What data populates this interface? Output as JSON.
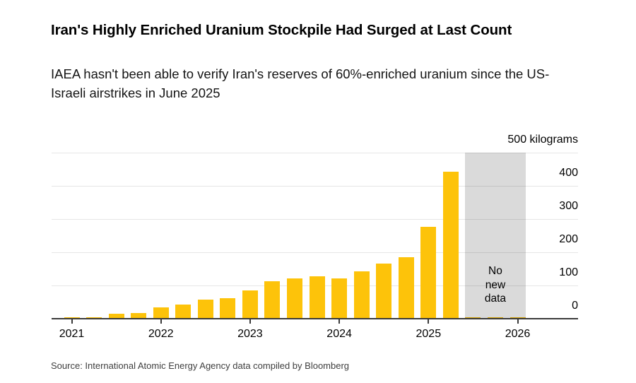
{
  "page": {
    "title": "Iran's Highly Enriched Uranium Stockpile Had Surged at Last Count",
    "subtitle": "IAEA hasn't been able to verify Iran's reserves of 60%-enriched uranium since the US-Israeli airstrikes in June 2025",
    "source": "Source: International Atomic Energy Agency data compiled by Bloomberg"
  },
  "colors": {
    "bar": "#fdc30a",
    "no_data_band": "rgba(0,0,0,0.145)",
    "gridline": "#e6e6e6",
    "axis": "#3a3a3a",
    "label_text": "#000000"
  },
  "chart_data": {
    "type": "bar",
    "title": "Iran's Highly Enriched Uranium Stockpile Had Surged at Last Count",
    "subtitle": "IAEA hasn't been able to verify Iran's reserves of 60%-enriched uranium since the US-Israeli airstrikes in June 2025",
    "unit_label": "500 kilograms",
    "ylabel": "kilograms",
    "xlabel": "",
    "categories": [
      "Q1 2021",
      "Q2 2021",
      "Q3 2021",
      "Q4 2021",
      "Q1 2022",
      "Q2 2022",
      "Q3 2022",
      "Q4 2022",
      "Q1 2023",
      "Q2 2023",
      "Q3 2023",
      "Q4 2023",
      "Q1 2024",
      "Q2 2024",
      "Q3 2024",
      "Q4 2024",
      "Q1 2025",
      "Q2 2025",
      "Q3 2025",
      "Q4 2025",
      "Q1 2026"
    ],
    "values": [
      4,
      4,
      15,
      18,
      35,
      43,
      58,
      62,
      85,
      113,
      122,
      128,
      121,
      143,
      166,
      185,
      277,
      443,
      4,
      4,
      4
    ],
    "x_year_labels": [
      "2021",
      "2022",
      "2023",
      "2024",
      "2025",
      "2026"
    ],
    "yaxis_ticks": [
      0,
      100,
      200,
      300,
      400
    ],
    "ylim": [
      0,
      500
    ],
    "grid": true,
    "legend": "none",
    "annotation": {
      "label": "No new data",
      "label_lines": [
        "No",
        "new",
        "data"
      ],
      "from_index": 18,
      "to_index": 20
    },
    "source": "Source: International Atomic Energy Agency data compiled by Bloomberg"
  }
}
